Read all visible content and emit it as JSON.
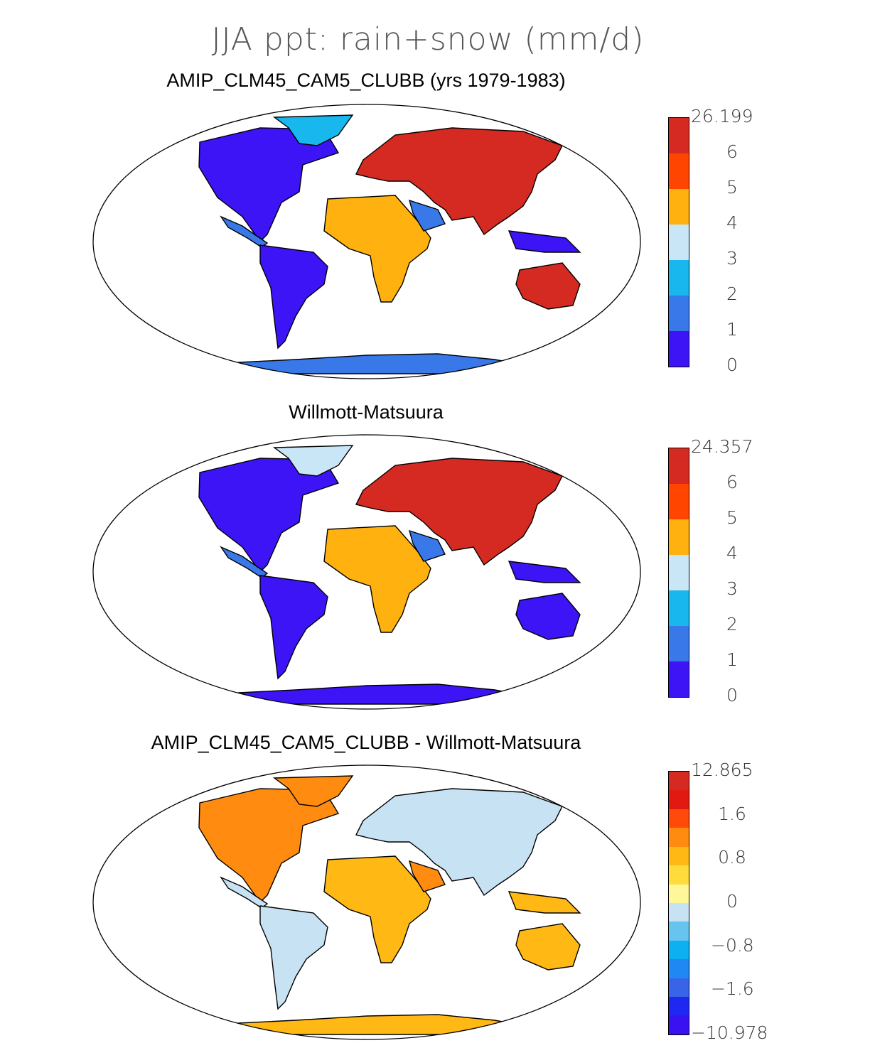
{
  "figure": {
    "title": "JJA ppt: rain+snow (mm/d)"
  },
  "panels": [
    {
      "title": "AMIP_CLM45_CAM5_CLUBB (yrs 1979-1983)",
      "colorbar": {
        "labels": [
          "26.199",
          "6",
          "5",
          "4",
          "3",
          "2",
          "1",
          "0"
        ],
        "colors": [
          "#d42a22",
          "#ff4500",
          "#ffb20f",
          "#c9e6f7",
          "#18b7ee",
          "#3878e8",
          "#3c14f5"
        ]
      }
    },
    {
      "title": "Willmott-Matsuura",
      "colorbar": {
        "labels": [
          "24.357",
          "6",
          "5",
          "4",
          "3",
          "2",
          "1",
          "0"
        ],
        "colors": [
          "#d42a22",
          "#ff4500",
          "#ffb20f",
          "#c9e6f7",
          "#18b7ee",
          "#3878e8",
          "#3c14f5"
        ]
      }
    },
    {
      "title": "AMIP_CLM45_CAM5_CLUBB - Willmott-Matsuura",
      "colorbar": {
        "labels": [
          "12.865",
          "1.6",
          "0.8",
          "0",
          "−0.8",
          "−1.6",
          "−10.978"
        ],
        "colors": [
          "#d42a22",
          "#e01a10",
          "#ff4a0a",
          "#ff8c10",
          "#ffb814",
          "#ffdc3c",
          "#fff79a",
          "#c7e2f3",
          "#66c4ee",
          "#0db0f0",
          "#1f88f2",
          "#3a64e8",
          "#1e28f0",
          "#3a12f2"
        ]
      }
    }
  ]
}
